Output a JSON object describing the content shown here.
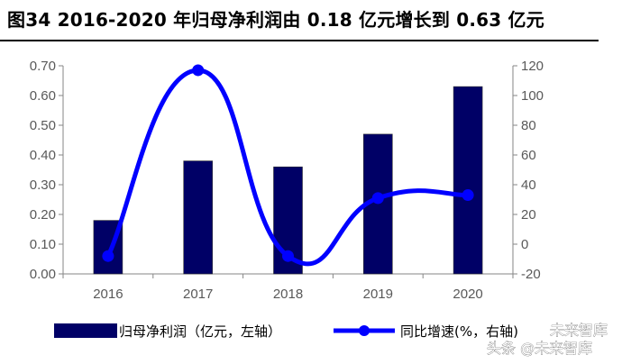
{
  "title": "图34 2016-2020 年归母净利润由 0.18 亿元增长到 0.63 亿元",
  "chart_data": {
    "type": "bar",
    "categories": [
      "2016",
      "2017",
      "2018",
      "2019",
      "2020"
    ],
    "series": [
      {
        "name": "归母净利润（亿元，左轴）",
        "type": "bar",
        "axis": "left",
        "values": [
          0.18,
          0.38,
          0.36,
          0.47,
          0.63
        ],
        "color": "#000066"
      },
      {
        "name": "同比增速(%，右轴)",
        "type": "line",
        "axis": "right",
        "values": [
          -8,
          117,
          -8,
          31,
          33
        ],
        "color": "#0000FF"
      }
    ],
    "y_left": {
      "min": 0,
      "max": 0.7,
      "step": 0.1,
      "ticks": [
        "0.00",
        "0.10",
        "0.20",
        "0.30",
        "0.40",
        "0.50",
        "0.60",
        "0.70"
      ]
    },
    "y_right": {
      "min": -20,
      "max": 120,
      "step": 20,
      "ticks": [
        "-20",
        "0",
        "20",
        "40",
        "60",
        "80",
        "100",
        "120"
      ]
    },
    "grid": false,
    "legend_position": "bottom"
  },
  "watermark": {
    "line1": "未来智库",
    "line2": "头条 @未来智库"
  }
}
